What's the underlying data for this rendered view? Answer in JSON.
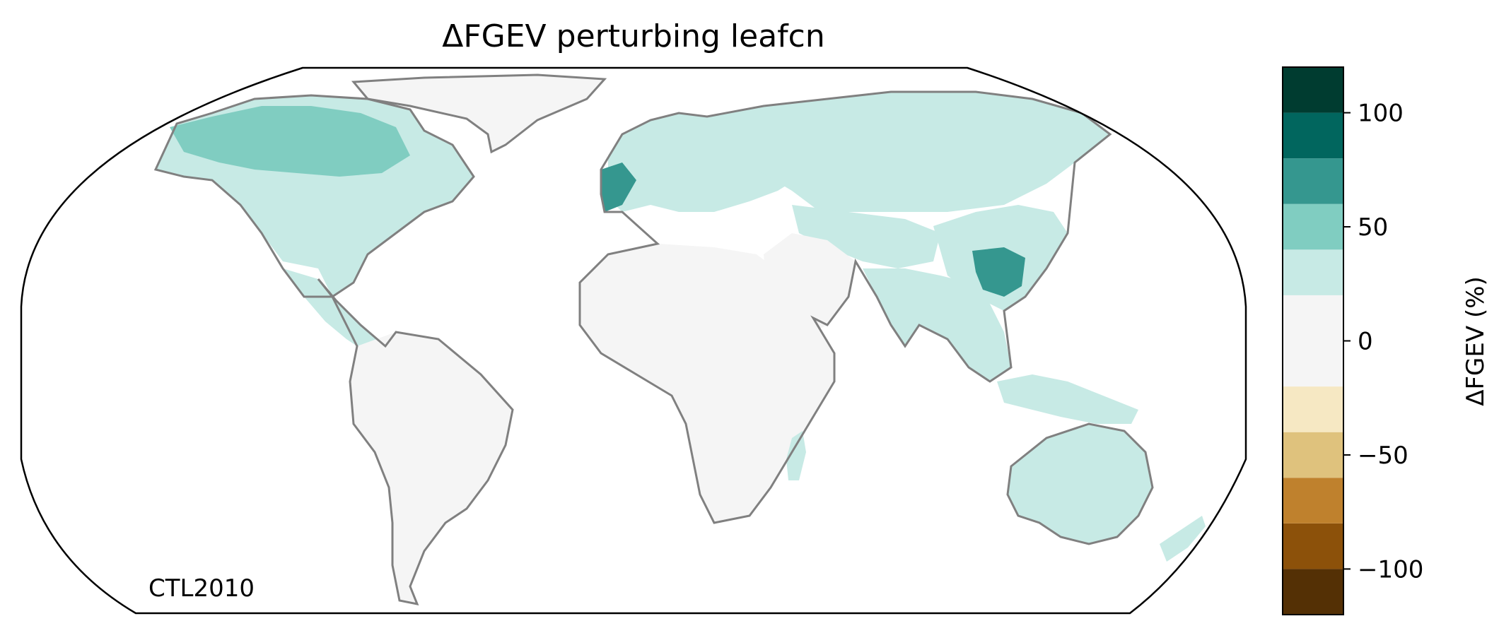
{
  "title": "ΔFGEV perturbing leafcn",
  "inset_label": "CTL2010",
  "colorbar": {
    "label": "ΔFGEV (%)",
    "vmin": -120,
    "vmax": 120,
    "bins": [
      {
        "range": [
          -120,
          -100
        ],
        "color": "#543005"
      },
      {
        "range": [
          -100,
          -80
        ],
        "color": "#8c510a"
      },
      {
        "range": [
          -80,
          -60
        ],
        "color": "#bf812d"
      },
      {
        "range": [
          -60,
          -40
        ],
        "color": "#dfc27d"
      },
      {
        "range": [
          -40,
          -20
        ],
        "color": "#f6e8c3"
      },
      {
        "range": [
          -20,
          0
        ],
        "color": "#f5f5f5"
      },
      {
        "range": [
          0,
          20
        ],
        "color": "#f5f5f5"
      },
      {
        "range": [
          20,
          40
        ],
        "color": "#c7eae5"
      },
      {
        "range": [
          40,
          60
        ],
        "color": "#80cdc1"
      },
      {
        "range": [
          60,
          80
        ],
        "color": "#35978f"
      },
      {
        "range": [
          80,
          100
        ],
        "color": "#01665e"
      },
      {
        "range": [
          100,
          120
        ],
        "color": "#003c30"
      }
    ],
    "ticks": [
      {
        "value": 100,
        "label": "100"
      },
      {
        "value": 50,
        "label": "50"
      },
      {
        "value": 0,
        "label": "0"
      },
      {
        "value": -50,
        "label": "−50"
      },
      {
        "value": -100,
        "label": "−100"
      }
    ]
  },
  "colors": {
    "coastline": "#808080",
    "borders": "#c8c8c8",
    "frame": "#000000"
  },
  "map_regions": [
    {
      "name": "north-america",
      "level": 1
    },
    {
      "name": "canada-boreal",
      "level": 2
    },
    {
      "name": "central-america",
      "level": 1
    },
    {
      "name": "south-america",
      "level": 0
    },
    {
      "name": "africa",
      "level": 0
    },
    {
      "name": "europe",
      "level": 1
    },
    {
      "name": "western-europe",
      "level": 3
    },
    {
      "name": "russia-siberia",
      "level": 1
    },
    {
      "name": "central-asia",
      "level": 1
    },
    {
      "name": "middle-east",
      "level": 0
    },
    {
      "name": "india-southeast-asia",
      "level": 1
    },
    {
      "name": "east-china",
      "level": 3
    },
    {
      "name": "maritime-asia",
      "level": 1
    },
    {
      "name": "australia",
      "level": 1
    },
    {
      "name": "greenland",
      "level": 0
    }
  ]
}
